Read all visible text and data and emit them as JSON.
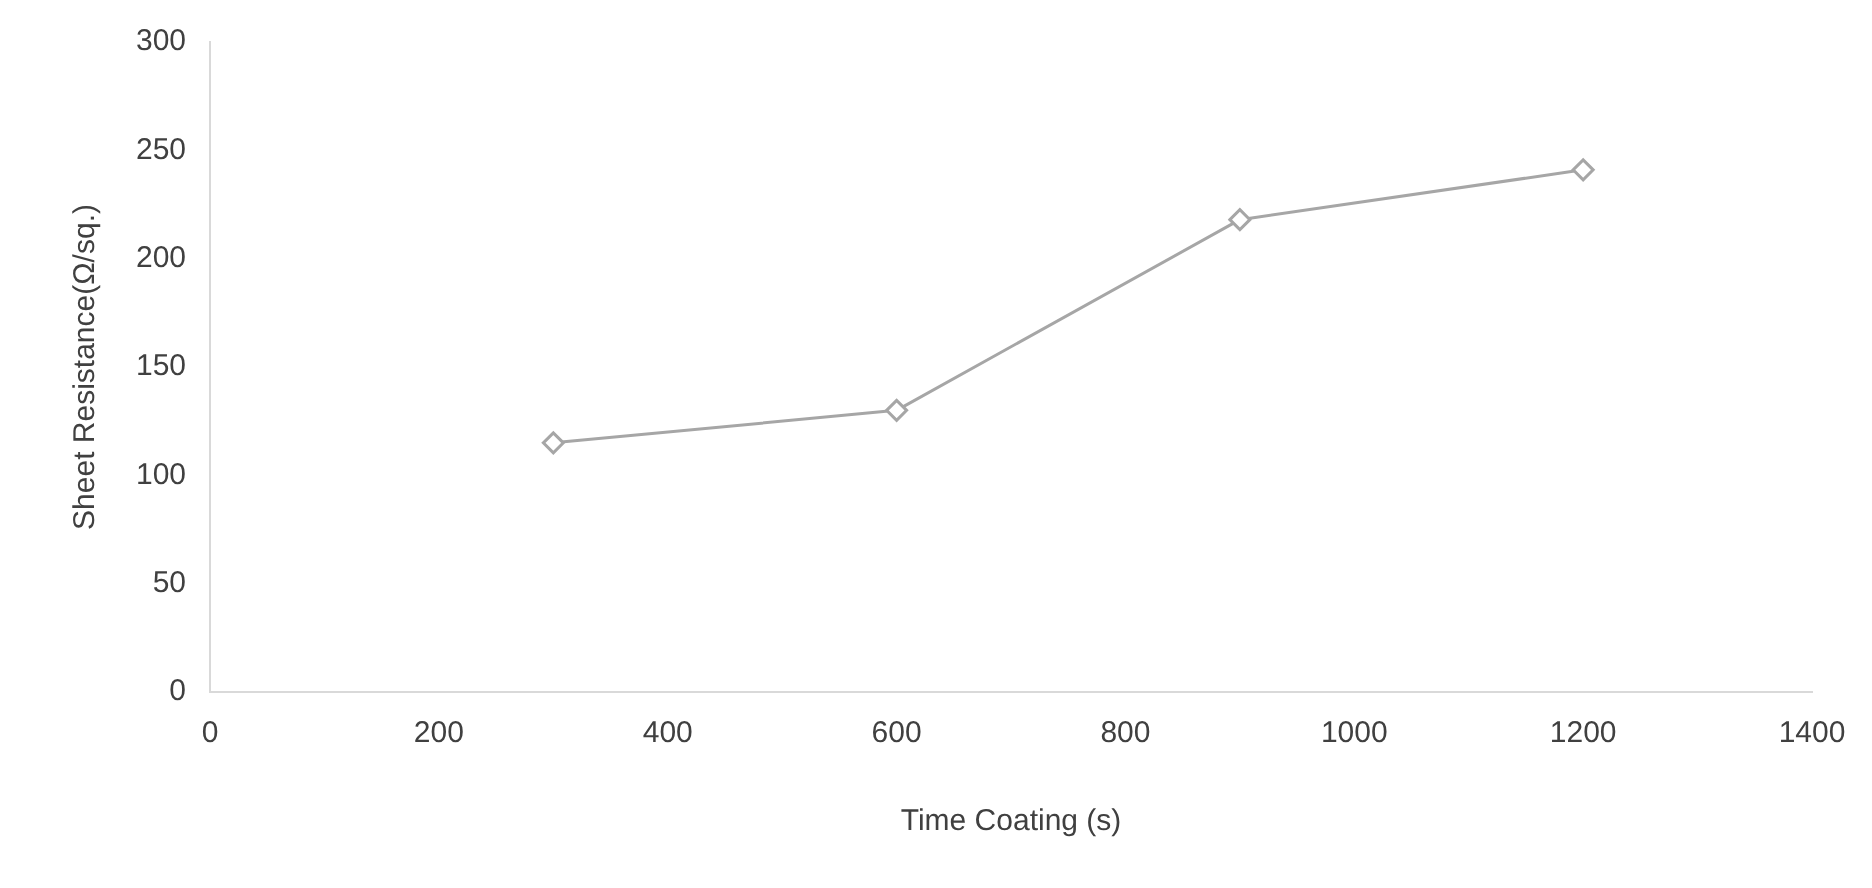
{
  "chart_data": {
    "type": "line",
    "xlabel": "Time Coating (s)",
    "ylabel": "Sheet Resistance(Ω/sq.)",
    "x": [
      300,
      600,
      900,
      1200
    ],
    "series": [
      {
        "color": "#a6a6a6",
        "values": [
          115,
          130,
          218,
          241
        ]
      }
    ],
    "xlim": [
      0,
      1400
    ],
    "xticks": [
      0,
      200,
      400,
      600,
      800,
      1000,
      1200,
      1400
    ],
    "ylim": [
      0,
      300
    ],
    "yticks": [
      0,
      50,
      100,
      150,
      200,
      250,
      300
    ],
    "marker": "diamond",
    "grid": false,
    "legend": false
  }
}
